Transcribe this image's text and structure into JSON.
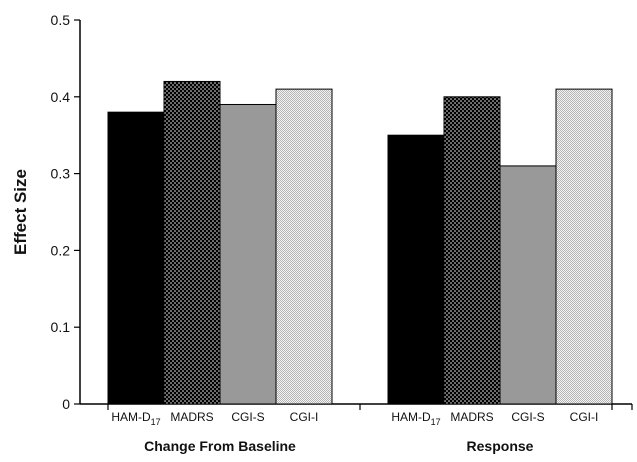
{
  "chart_data": {
    "type": "bar",
    "ylabel": "Effect Size",
    "xlabel": "",
    "ylim": [
      0,
      0.5
    ],
    "yticks": [
      0,
      0.1,
      0.2,
      0.3,
      0.4,
      0.5
    ],
    "ytick_labels": [
      "0",
      "0.1",
      "0.2",
      "0.3",
      "0.4",
      "0.5"
    ],
    "grid": false,
    "groups": [
      "Change From Baseline",
      "Response"
    ],
    "series": [
      {
        "name": "HAM-D17",
        "label_main": "HAM-D",
        "label_sub": "17",
        "values": [
          0.38,
          0.35
        ],
        "fill": "#000000",
        "pattern": "solid"
      },
      {
        "name": "MADRS",
        "values": [
          0.42,
          0.4
        ],
        "fill": "#000000",
        "pattern": "white-dots"
      },
      {
        "name": "CGI-S",
        "values": [
          0.39,
          0.31
        ],
        "fill": "#999999",
        "pattern": "solid"
      },
      {
        "name": "CGI-I",
        "values": [
          0.41,
          0.41
        ],
        "fill": "#e2e2e2",
        "pattern": "fine-check"
      }
    ]
  }
}
